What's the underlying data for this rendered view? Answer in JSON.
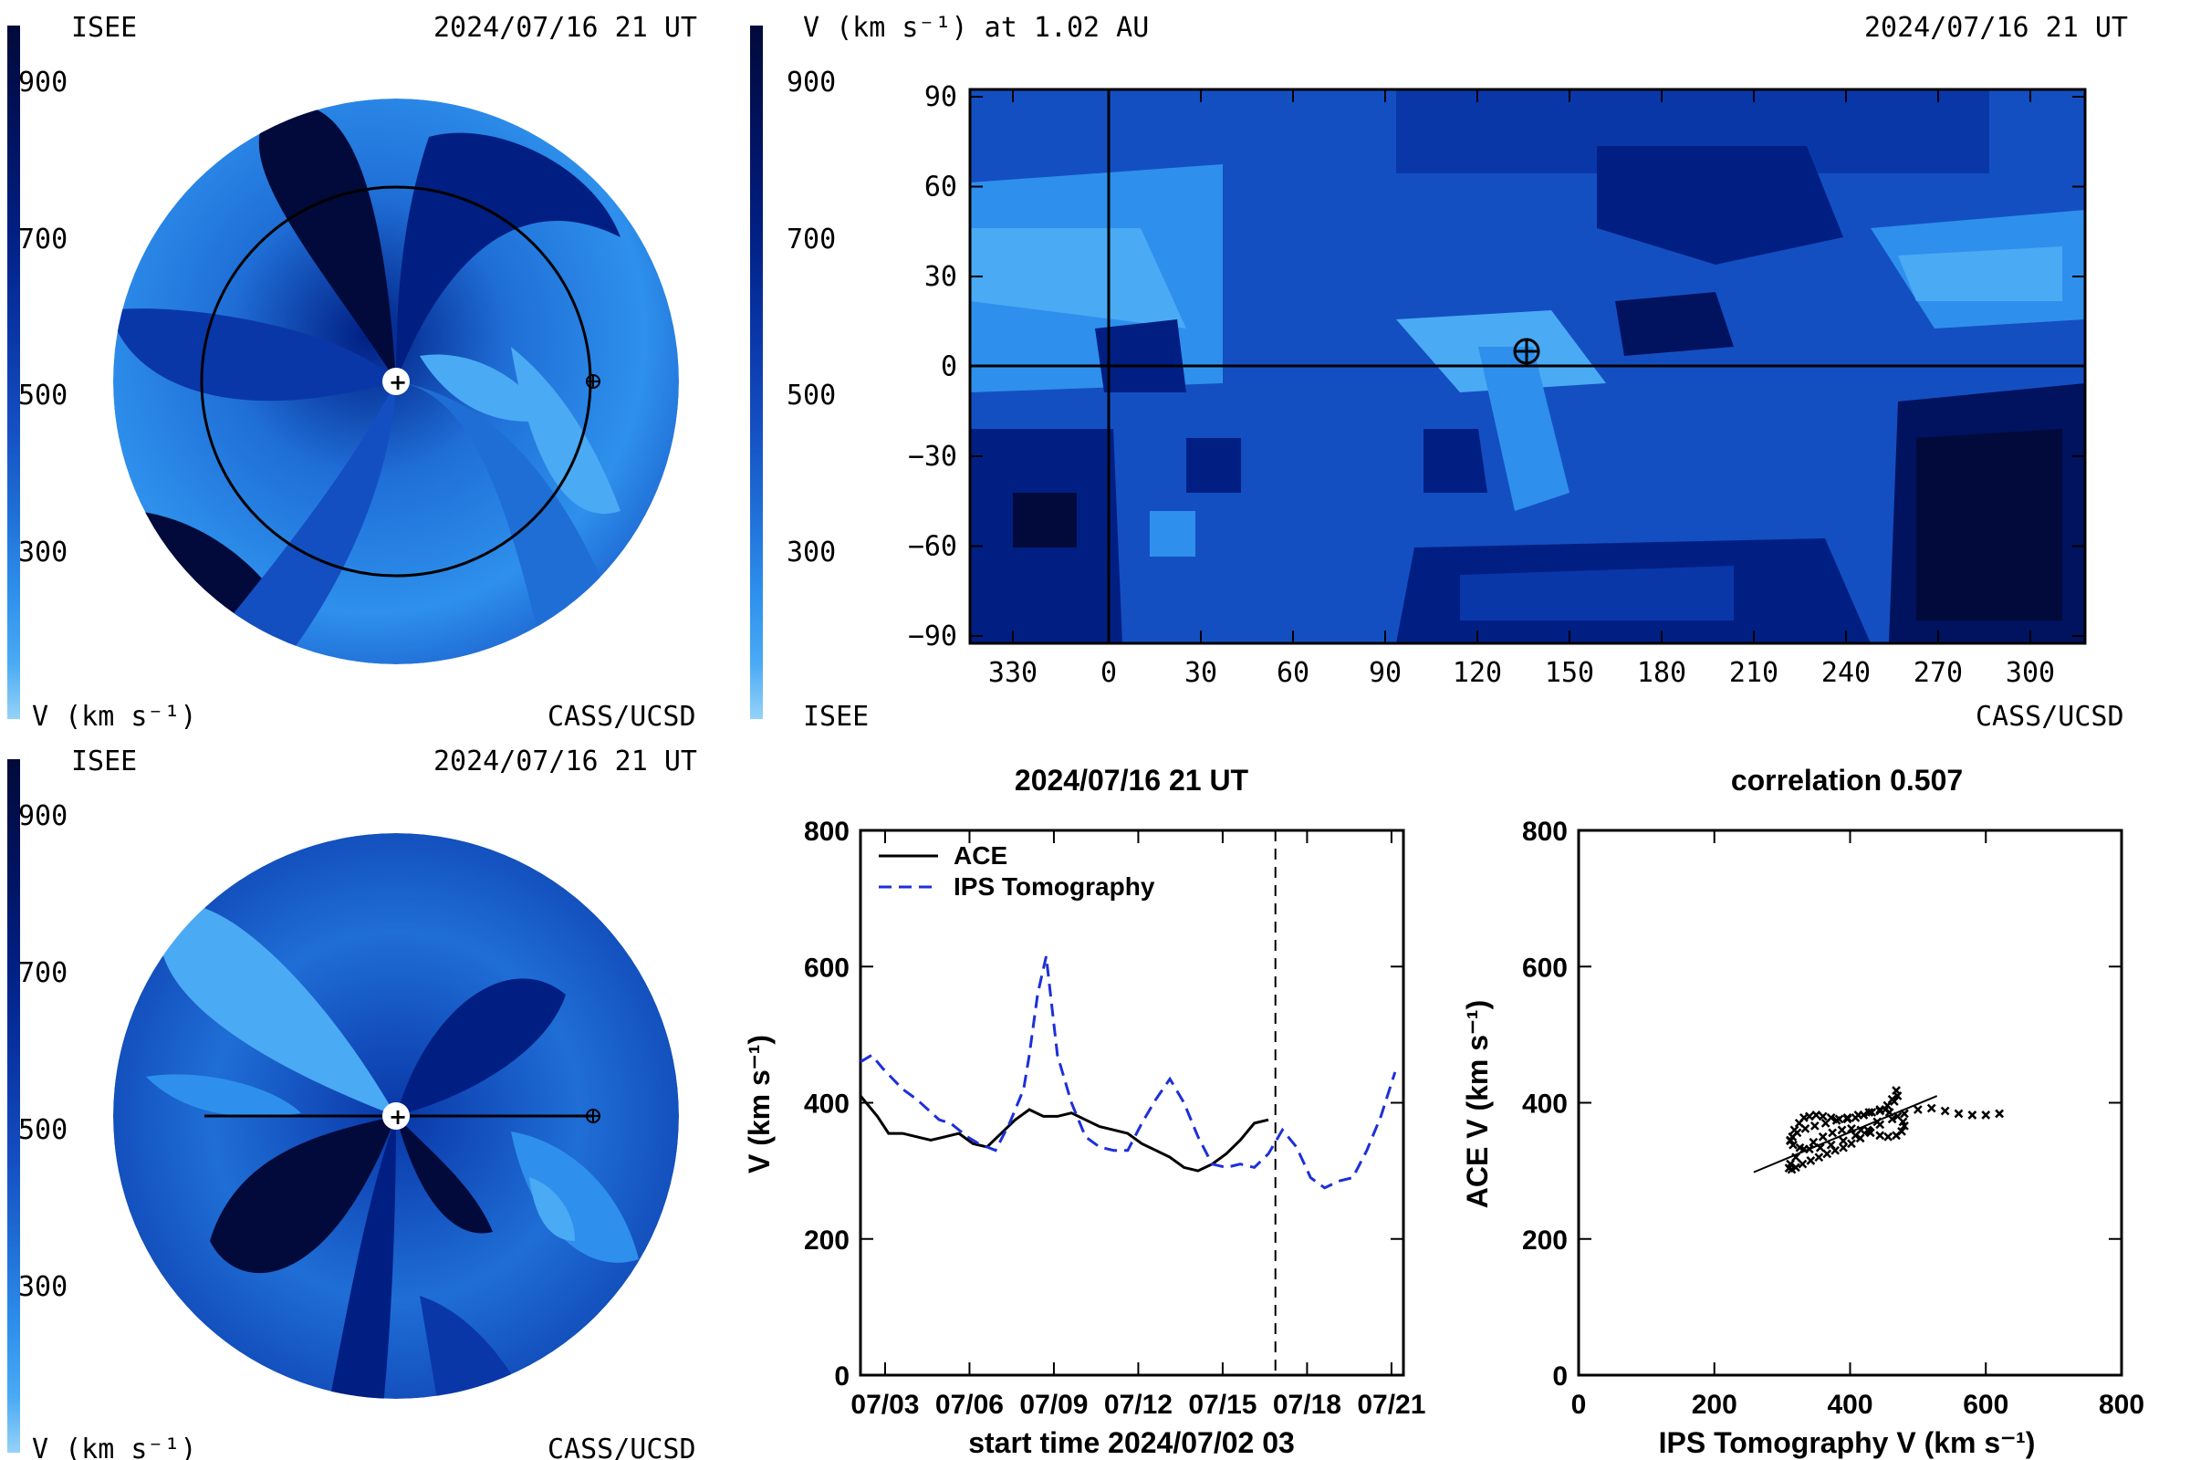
{
  "colorbar": {
    "ticks": [
      "900",
      "700",
      "500",
      "300"
    ],
    "levels": [
      "#010a3a",
      "#01125e",
      "#011f83",
      "#0a37a8",
      "#144fc2",
      "#1f6ed6",
      "#2e90ec",
      "#4aaaf4",
      "#96d2f8"
    ]
  },
  "panel_tl": {
    "left_label": "ISEE",
    "date": "2024/07/16 21 UT",
    "unit": "V (km s⁻¹)",
    "credit": "CASS/UCSD"
  },
  "panel_tr": {
    "title": "V (km s⁻¹) at 1.02 AU",
    "date": "2024/07/16 21 UT",
    "left_label": "ISEE",
    "credit": "CASS/UCSD",
    "x_ticks": [
      "330",
      "0",
      "30",
      "60",
      "90",
      "120",
      "150",
      "180",
      "210",
      "240",
      "270",
      "300"
    ],
    "y_ticks": [
      "90",
      "60",
      "30",
      "0",
      "−30",
      "−60",
      "−90"
    ]
  },
  "panel_bl": {
    "left_label": "ISEE",
    "date": "2024/07/16 21 UT",
    "unit": "V (km s⁻¹)",
    "credit": "CASS/UCSD"
  },
  "chart_data": [
    {
      "type": "line",
      "title": "2024/07/16 21 UT",
      "xlabel": "start time 2024/07/02 03",
      "ylabel": "V (km s⁻¹)",
      "ylim": [
        0,
        800
      ],
      "yticks": [
        "0",
        "200",
        "400",
        "600",
        "800"
      ],
      "xticks": [
        "07/03",
        "07/06",
        "07/09",
        "07/12",
        "07/15",
        "07/18",
        "07/21"
      ],
      "xlim_days": [
        0,
        19.3
      ],
      "xtick_days": [
        0.875,
        3.875,
        6.875,
        9.875,
        12.875,
        15.875,
        18.875
      ],
      "vline_day": 14.75,
      "series": [
        {
          "name": "ACE",
          "style": "solid",
          "color": "#000000",
          "x": [
            0,
            0.6,
            1,
            1.5,
            2,
            2.5,
            3,
            3.5,
            4,
            4.5,
            5,
            5.5,
            6,
            6.5,
            7,
            7.5,
            8,
            8.5,
            9,
            9.5,
            10,
            10.5,
            11,
            11.5,
            12,
            12.5,
            13,
            13.5,
            14,
            14.5
          ],
          "y": [
            410,
            380,
            355,
            355,
            350,
            345,
            350,
            355,
            340,
            335,
            355,
            375,
            390,
            380,
            380,
            385,
            375,
            365,
            360,
            355,
            340,
            330,
            320,
            305,
            300,
            310,
            325,
            345,
            370,
            375
          ]
        },
        {
          "name": "IPS Tomography",
          "style": "dashed",
          "color": "#1d2fd8",
          "x": [
            0,
            0.4,
            0.8,
            1.5,
            2,
            2.8,
            3.2,
            3.8,
            4.2,
            4.8,
            5.3,
            5.8,
            6,
            6.3,
            6.6,
            7,
            7.5,
            8,
            8.5,
            9,
            9.5,
            10,
            10.5,
            11,
            11.5,
            12,
            12.5,
            13,
            13.5,
            14,
            14.5,
            15,
            15.5,
            16,
            16.5,
            17,
            17.5,
            18,
            18.5,
            19
          ],
          "y": [
            460,
            470,
            450,
            420,
            405,
            375,
            370,
            350,
            340,
            330,
            370,
            420,
            470,
            560,
            615,
            470,
            400,
            350,
            335,
            330,
            330,
            370,
            405,
            435,
            400,
            350,
            310,
            305,
            310,
            305,
            325,
            360,
            335,
            290,
            275,
            285,
            290,
            330,
            380,
            445
          ]
        }
      ]
    },
    {
      "type": "scatter",
      "title": "correlation 0.507",
      "xlabel": "IPS Tomography V (km s⁻¹)",
      "ylabel": "ACE V (km s⁻¹)",
      "xlim": [
        0,
        800
      ],
      "ylim": [
        0,
        800
      ],
      "xticks": [
        "0",
        "200",
        "400",
        "600",
        "800"
      ],
      "yticks": [
        "0",
        "200",
        "400",
        "600",
        "800"
      ],
      "fit_line": [
        [
          258,
          298
        ],
        [
          528,
          410
        ]
      ],
      "points_x": [
        312,
        318,
        325,
        332,
        340,
        350,
        360,
        372,
        384,
        396,
        408,
        420,
        432,
        444,
        455,
        465,
        470,
        468,
        462,
        452,
        440,
        428,
        415,
        402,
        390,
        378,
        366,
        354,
        342,
        330,
        320,
        314,
        310,
        312,
        320,
        332,
        346,
        360,
        374,
        388,
        402,
        416,
        430,
        444,
        456,
        468,
        476,
        480,
        478,
        470,
        458,
        444,
        428,
        412,
        396,
        380,
        364,
        348,
        334,
        322,
        315,
        312,
        316,
        326,
        340,
        356,
        372,
        390,
        408,
        426,
        444,
        462,
        480,
        500,
        520,
        540,
        560,
        580,
        600,
        620
      ],
      "points_y": [
        345,
        360,
        370,
        378,
        380,
        382,
        380,
        378,
        376,
        376,
        378,
        382,
        386,
        390,
        396,
        402,
        410,
        418,
        405,
        390,
        372,
        358,
        348,
        340,
        334,
        330,
        325,
        320,
        315,
        310,
        305,
        302,
        304,
        310,
        320,
        332,
        342,
        350,
        356,
        360,
        362,
        360,
        356,
        352,
        350,
        352,
        358,
        366,
        372,
        380,
        386,
        388,
        386,
        382,
        378,
        374,
        370,
        366,
        362,
        356,
        350,
        344,
        338,
        334,
        332,
        334,
        338,
        344,
        352,
        360,
        368,
        376,
        384,
        390,
        392,
        388,
        384,
        382,
        382,
        384
      ]
    }
  ]
}
